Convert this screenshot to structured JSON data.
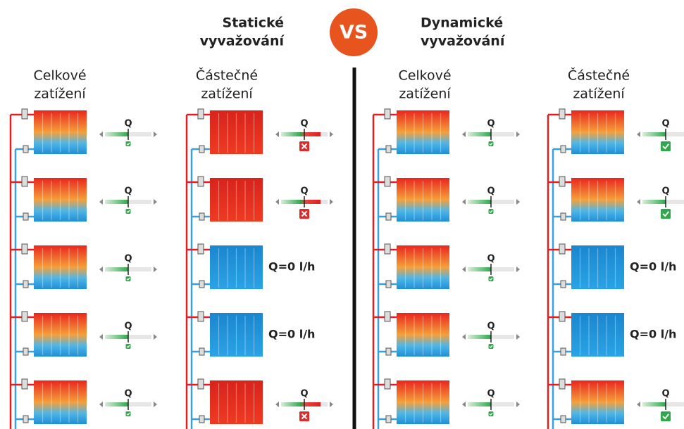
{
  "header": {
    "left_title": [
      "Statické",
      "vyvažování"
    ],
    "vs": "VS",
    "right_title": [
      "Dynamické",
      "vyvažování"
    ]
  },
  "columns": [
    {
      "label": [
        "Celkové",
        "zatížení"
      ],
      "rows": [
        {
          "radiator": "warm",
          "flow": "Q",
          "status": "ok"
        },
        {
          "radiator": "warm",
          "flow": "Q",
          "status": "ok"
        },
        {
          "radiator": "warm",
          "flow": "Q",
          "status": "ok"
        },
        {
          "radiator": "warm",
          "flow": "Q",
          "status": "ok"
        },
        {
          "radiator": "warm",
          "flow": "Q",
          "status": "ok"
        }
      ]
    },
    {
      "label": [
        "Částečné",
        "zatížení"
      ],
      "rows": [
        {
          "radiator": "hot",
          "flow": "Q",
          "status": "error"
        },
        {
          "radiator": "hot",
          "flow": "Q",
          "status": "error"
        },
        {
          "radiator": "cold",
          "flow": "Q=0 l/h",
          "status": "none"
        },
        {
          "radiator": "cold",
          "flow": "Q=0 l/h",
          "status": "none"
        },
        {
          "radiator": "hot",
          "flow": "Q",
          "status": "error"
        }
      ]
    },
    {
      "label": [
        "Celkové",
        "zatížení"
      ],
      "rows": [
        {
          "radiator": "warm",
          "flow": "Q",
          "status": "ok"
        },
        {
          "radiator": "warm",
          "flow": "Q",
          "status": "ok"
        },
        {
          "radiator": "warm",
          "flow": "Q",
          "status": "ok"
        },
        {
          "radiator": "warm",
          "flow": "Q",
          "status": "ok"
        },
        {
          "radiator": "warm",
          "flow": "Q",
          "status": "ok"
        }
      ]
    },
    {
      "label": [
        "Částečné",
        "zatížení"
      ],
      "rows": [
        {
          "radiator": "warm",
          "flow": "Q",
          "status": "ok-large"
        },
        {
          "radiator": "warm",
          "flow": "Q",
          "status": "ok-large"
        },
        {
          "radiator": "cold",
          "flow": "Q=0 l/h",
          "status": "none"
        },
        {
          "radiator": "cold",
          "flow": "Q=0 l/h",
          "status": "none"
        },
        {
          "radiator": "warm",
          "flow": "Q",
          "status": "ok-large"
        }
      ]
    }
  ]
}
